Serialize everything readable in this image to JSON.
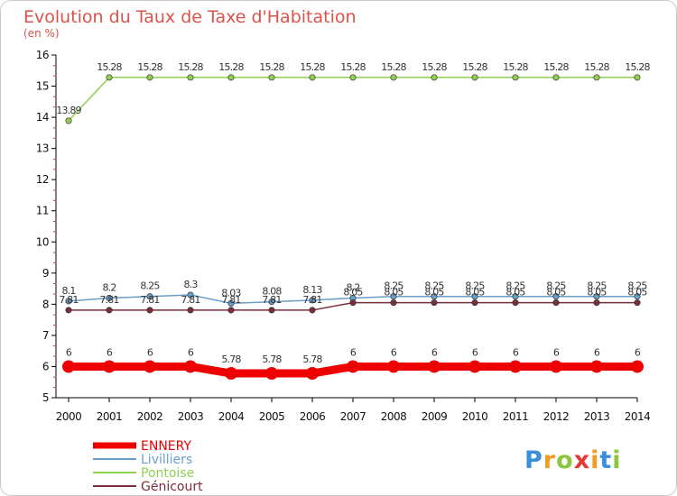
{
  "chart_data": {
    "type": "line",
    "title": "Evolution du Taux de Taxe d'Habitation",
    "subtitle": "(en %)",
    "xlabel": "",
    "ylabel": "",
    "ylim": [
      5,
      16
    ],
    "yticks": [
      "5",
      "6",
      "7",
      "8",
      "9",
      "10",
      "11",
      "12",
      "13",
      "14",
      "15",
      "16"
    ],
    "grid": false,
    "legend_position": "bottom-left",
    "x": [
      "2000",
      "2001",
      "2002",
      "2003",
      "2004",
      "2005",
      "2006",
      "2007",
      "2008",
      "2009",
      "2010",
      "2011",
      "2012",
      "2013",
      "2014"
    ],
    "series": [
      {
        "name": "ENNERY",
        "color": "#ee0000",
        "values": [
          6,
          6,
          6,
          6,
          5.78,
          5.78,
          5.78,
          6,
          6,
          6,
          6,
          6,
          6,
          6,
          6
        ],
        "labels": [
          "6",
          "6",
          "6",
          "6",
          "5.78",
          "5.78",
          "5.78",
          "6",
          "6",
          "6",
          "6",
          "6",
          "6",
          "6",
          "6"
        ]
      },
      {
        "name": "Livilliers",
        "color": "#6a9ec9",
        "values": [
          8.1,
          8.2,
          8.25,
          8.3,
          8.03,
          8.08,
          8.13,
          8.2,
          8.25,
          8.25,
          8.25,
          8.25,
          8.25,
          8.25,
          8.25
        ],
        "labels": [
          "8.1",
          "8.2",
          "8.25",
          "8.3",
          "8.03",
          "8.08",
          "8.13",
          "8.2",
          "8.25",
          "8.25",
          "8.25",
          "8.25",
          "8.25",
          "8.25",
          "8.25"
        ]
      },
      {
        "name": "Pontoise",
        "color": "#8fd14f",
        "values": [
          13.89,
          15.28,
          15.28,
          15.28,
          15.28,
          15.28,
          15.28,
          15.28,
          15.28,
          15.28,
          15.28,
          15.28,
          15.28,
          15.28,
          15.28
        ],
        "labels": [
          "13.89",
          "15.28",
          "15.28",
          "15.28",
          "15.28",
          "15.28",
          "15.28",
          "15.28",
          "15.28",
          "15.28",
          "15.28",
          "15.28",
          "15.28",
          "15.28",
          "15.28"
        ]
      },
      {
        "name": "Génicourt",
        "color": "#7a2e3a",
        "values": [
          7.81,
          7.81,
          7.81,
          7.81,
          7.81,
          7.81,
          7.81,
          8.05,
          8.05,
          8.05,
          8.05,
          8.05,
          8.05,
          8.05,
          8.05
        ],
        "labels": [
          "7.81",
          "7.81",
          "7.81",
          "7.81",
          "7.81",
          "7.81",
          "7.81",
          "8.05",
          "8.05",
          "8.05",
          "8.05",
          "8.05",
          "8.05",
          "8.05",
          "8.05"
        ]
      }
    ]
  },
  "brand": {
    "letters": [
      "P",
      "r",
      "o",
      "x",
      "i",
      "t",
      "i"
    ],
    "colors": [
      "#3a8fd8",
      "#f29c22",
      "#8cc63f",
      "#e53935",
      "#f29c22",
      "#3a8fd8",
      "#8cc63f"
    ]
  },
  "colors": {
    "title": "#d9534a",
    "axis": "#000000",
    "minor_tick": "#cc3333"
  }
}
